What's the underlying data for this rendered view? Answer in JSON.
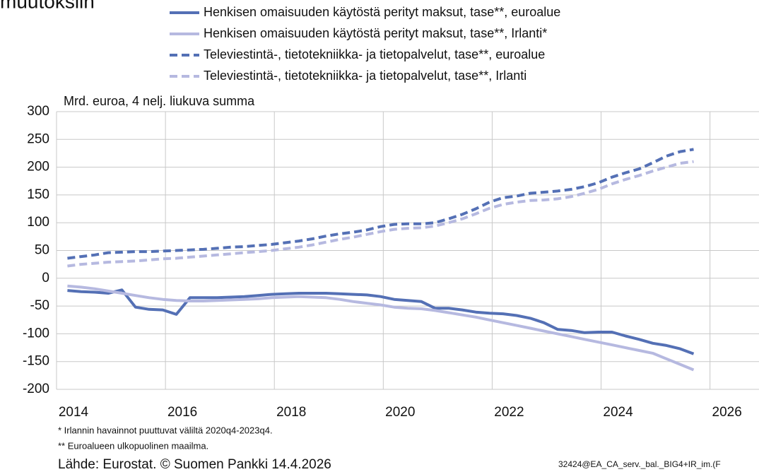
{
  "chart_data": {
    "type": "line",
    "title": "muutoksiin",
    "y_axis_label": "Mrd. euroa, 4 nelj. liukuva summa",
    "x": [
      2014.2,
      2014.45,
      2014.7,
      2014.95,
      2015.2,
      2015.45,
      2015.7,
      2015.95,
      2016.2,
      2016.45,
      2016.7,
      2016.95,
      2017.2,
      2017.45,
      2017.7,
      2017.95,
      2018.2,
      2018.45,
      2018.7,
      2018.95,
      2019.2,
      2019.45,
      2019.7,
      2019.95,
      2020.2,
      2020.45,
      2020.7,
      2020.95,
      2021.2,
      2021.45,
      2021.7,
      2021.95,
      2022.2,
      2022.45,
      2022.7,
      2022.95,
      2023.2,
      2023.45,
      2023.7,
      2023.95,
      2024.2,
      2024.45,
      2024.7,
      2024.95,
      2025.2,
      2025.45,
      2025.7
    ],
    "series": [
      {
        "name": "Henkisen omaisuuden käytöstä perityt maksut, tase**, euroalue",
        "color": "#5470b5",
        "line_style": "solid",
        "values": [
          -22,
          -24,
          -25,
          -27,
          -21,
          -52,
          -56,
          -57,
          -65,
          -35,
          -35,
          -35,
          -34,
          -33,
          -31,
          -29,
          -28,
          -27,
          -27,
          -27,
          -28,
          -29,
          -30,
          -33,
          -38,
          -40,
          -42,
          -54,
          -54,
          -57,
          -61,
          -63,
          -64,
          -67,
          -72,
          -80,
          -92,
          -94,
          -98,
          -97,
          -97,
          -104,
          -110,
          -117,
          -121,
          -127,
          -136
        ]
      },
      {
        "name": "Henkisen omaisuuden käytöstä perityt maksut, tase**, Irlanti*",
        "color": "#b6b9e0",
        "line_style": "solid",
        "values": [
          -14,
          -16,
          -19,
          -23,
          -27,
          -31,
          -35,
          -38,
          -40,
          -41,
          -41,
          -40,
          -39,
          -38,
          -37,
          -35,
          -34,
          -33,
          -34,
          -35,
          -38,
          -42,
          -45,
          -48,
          -52,
          -54,
          -55,
          -58,
          -62,
          -66,
          -70,
          -75,
          -80,
          -85,
          -90,
          -95,
          -100,
          -105,
          -110,
          -115,
          -120,
          -125,
          -130,
          -135,
          -145,
          -155,
          -165
        ]
      },
      {
        "name": "Televiestintä-, tietotekniikka- ja tietopalvelut, tase**, euroalue",
        "color": "#5470b5",
        "line_style": "dashed",
        "values": [
          36,
          39,
          42,
          46,
          47,
          48,
          48,
          49,
          50,
          51,
          52,
          54,
          56,
          57,
          59,
          61,
          64,
          67,
          71,
          76,
          80,
          83,
          87,
          93,
          97,
          98,
          98,
          100,
          107,
          115,
          125,
          137,
          145,
          148,
          153,
          155,
          157,
          160,
          165,
          172,
          182,
          190,
          197,
          208,
          220,
          228,
          232
        ]
      },
      {
        "name": "Televiestintä-, tietotekniikka- ja tietopalvelut, tase**, Irlanti",
        "color": "#b6b9e0",
        "line_style": "dashed",
        "values": [
          22,
          25,
          27,
          29,
          30,
          31,
          33,
          35,
          36,
          38,
          40,
          42,
          44,
          46,
          48,
          50,
          53,
          56,
          60,
          65,
          70,
          74,
          79,
          84,
          88,
          90,
          91,
          94,
          100,
          107,
          116,
          126,
          133,
          137,
          140,
          141,
          143,
          147,
          153,
          160,
          170,
          178,
          185,
          193,
          200,
          207,
          210
        ]
      }
    ],
    "xlim": [
      2014,
      2026.9
    ],
    "xticks": [
      2014,
      2016,
      2018,
      2020,
      2022,
      2024,
      2026
    ],
    "ylim": [
      -200,
      300
    ],
    "yticks": [
      -200,
      -150,
      -100,
      -50,
      0,
      50,
      100,
      150,
      200,
      250,
      300
    ],
    "grid": true,
    "footnotes": [
      "* Irlannin havainnot puuttuvat väliltä 2020q4-2023q4.",
      "** Euroalueen ulkopuolinen maailma."
    ],
    "source": "Lähde: Eurostat. © Suomen Pankki 14.4.2026",
    "code": "32424@EA_CA_serv._bal._BIG4+IR_im.(F"
  }
}
